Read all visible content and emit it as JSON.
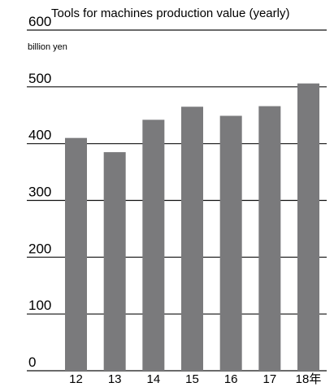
{
  "chart_data": {
    "type": "bar",
    "title": "Tools for machines production value (yearly)",
    "ylabel": "billion yen",
    "xlabel": "",
    "categories": [
      "12",
      "13",
      "14",
      "15",
      "16",
      "17",
      "18年"
    ],
    "values": [
      410,
      385,
      442,
      465,
      449,
      466,
      506
    ],
    "ylim": [
      0,
      600
    ],
    "yticks": [
      "0",
      "100",
      "200",
      "300",
      "400",
      "500",
      "600"
    ],
    "grid": true,
    "colors": {
      "bar": "#7a7a7c",
      "grid": "#111111",
      "text": "#111111"
    }
  }
}
